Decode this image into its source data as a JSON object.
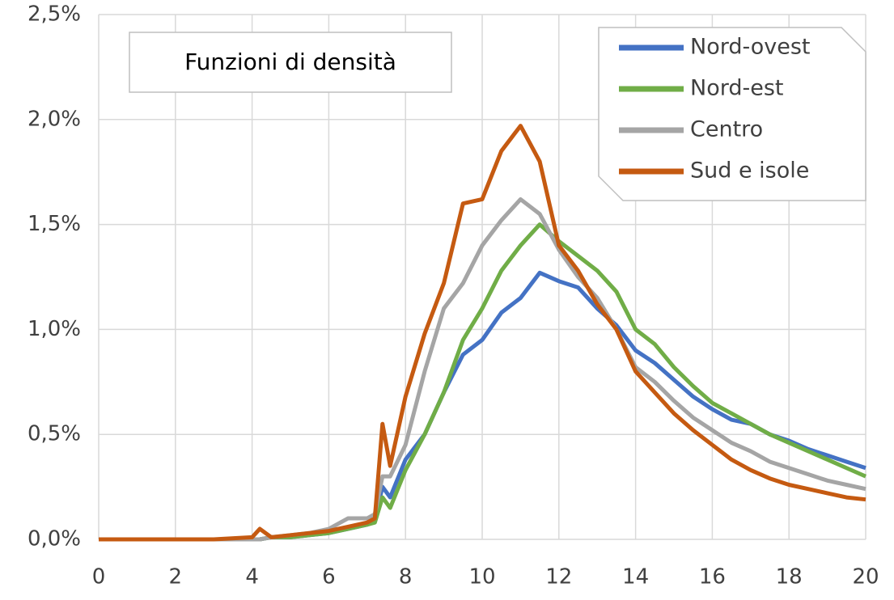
{
  "chart_data": {
    "type": "line",
    "title": "Funzioni di densità",
    "x": [
      0,
      1,
      2,
      3,
      4,
      4.2,
      4.5,
      5,
      5.5,
      6,
      6.5,
      7,
      7.2,
      7.4,
      7.6,
      8,
      8.5,
      9,
      9.5,
      10,
      10.5,
      11,
      11.5,
      12,
      12.5,
      13,
      13.5,
      14,
      14.5,
      15,
      15.5,
      16,
      16.5,
      17,
      17.5,
      18,
      18.5,
      19,
      19.5,
      20
    ],
    "series": [
      {
        "name": "Nord-ovest",
        "color": "#4472c4",
        "values": [
          0,
          0,
          0,
          0,
          0,
          0,
          0.01,
          0.01,
          0.02,
          0.03,
          0.05,
          0.07,
          0.1,
          0.25,
          0.2,
          0.38,
          0.5,
          0.7,
          0.88,
          0.95,
          1.08,
          1.15,
          1.27,
          1.23,
          1.2,
          1.1,
          1.02,
          0.9,
          0.84,
          0.76,
          0.68,
          0.62,
          0.57,
          0.55,
          0.5,
          0.47,
          0.43,
          0.4,
          0.37,
          0.34
        ]
      },
      {
        "name": "Nord-est",
        "color": "#70ad47",
        "values": [
          0,
          0,
          0,
          0,
          0,
          0,
          0.01,
          0.01,
          0.02,
          0.03,
          0.05,
          0.07,
          0.08,
          0.2,
          0.15,
          0.33,
          0.5,
          0.7,
          0.95,
          1.1,
          1.28,
          1.4,
          1.5,
          1.42,
          1.35,
          1.28,
          1.18,
          1.0,
          0.93,
          0.82,
          0.73,
          0.65,
          0.6,
          0.55,
          0.5,
          0.46,
          0.42,
          0.38,
          0.34,
          0.3
        ]
      },
      {
        "name": "Centro",
        "color": "#a5a5a5",
        "values": [
          0,
          0,
          0,
          0,
          0,
          0,
          0.01,
          0.02,
          0.03,
          0.05,
          0.1,
          0.1,
          0.12,
          0.3,
          0.3,
          0.45,
          0.8,
          1.1,
          1.22,
          1.4,
          1.52,
          1.62,
          1.55,
          1.38,
          1.25,
          1.15,
          1.0,
          0.82,
          0.75,
          0.66,
          0.58,
          0.52,
          0.46,
          0.42,
          0.37,
          0.34,
          0.31,
          0.28,
          0.26,
          0.24
        ]
      },
      {
        "name": "Sud e isole",
        "color": "#c55a11",
        "values": [
          0,
          0,
          0,
          0,
          0.01,
          0.05,
          0.01,
          0.02,
          0.03,
          0.04,
          0.06,
          0.08,
          0.1,
          0.55,
          0.35,
          0.68,
          0.98,
          1.22,
          1.6,
          1.62,
          1.85,
          1.97,
          1.8,
          1.4,
          1.28,
          1.12,
          1.0,
          0.8,
          0.7,
          0.6,
          0.52,
          0.45,
          0.38,
          0.33,
          0.29,
          0.26,
          0.24,
          0.22,
          0.2,
          0.19
        ]
      }
    ],
    "xlim": [
      0,
      20
    ],
    "xticks": [
      0,
      2,
      4,
      6,
      8,
      10,
      12,
      14,
      16,
      18,
      20
    ],
    "ylim": [
      0,
      2.5
    ],
    "yticks": [
      {
        "value": 0,
        "label": "0,0%"
      },
      {
        "value": 0.5,
        "label": "0,5%"
      },
      {
        "value": 1,
        "label": "1,0%"
      },
      {
        "value": 1.5,
        "label": "1,5%"
      },
      {
        "value": 2,
        "label": "2,0%"
      },
      {
        "value": 2.5,
        "label": "2,5%"
      }
    ],
    "grid": true,
    "legend": "top-right"
  }
}
